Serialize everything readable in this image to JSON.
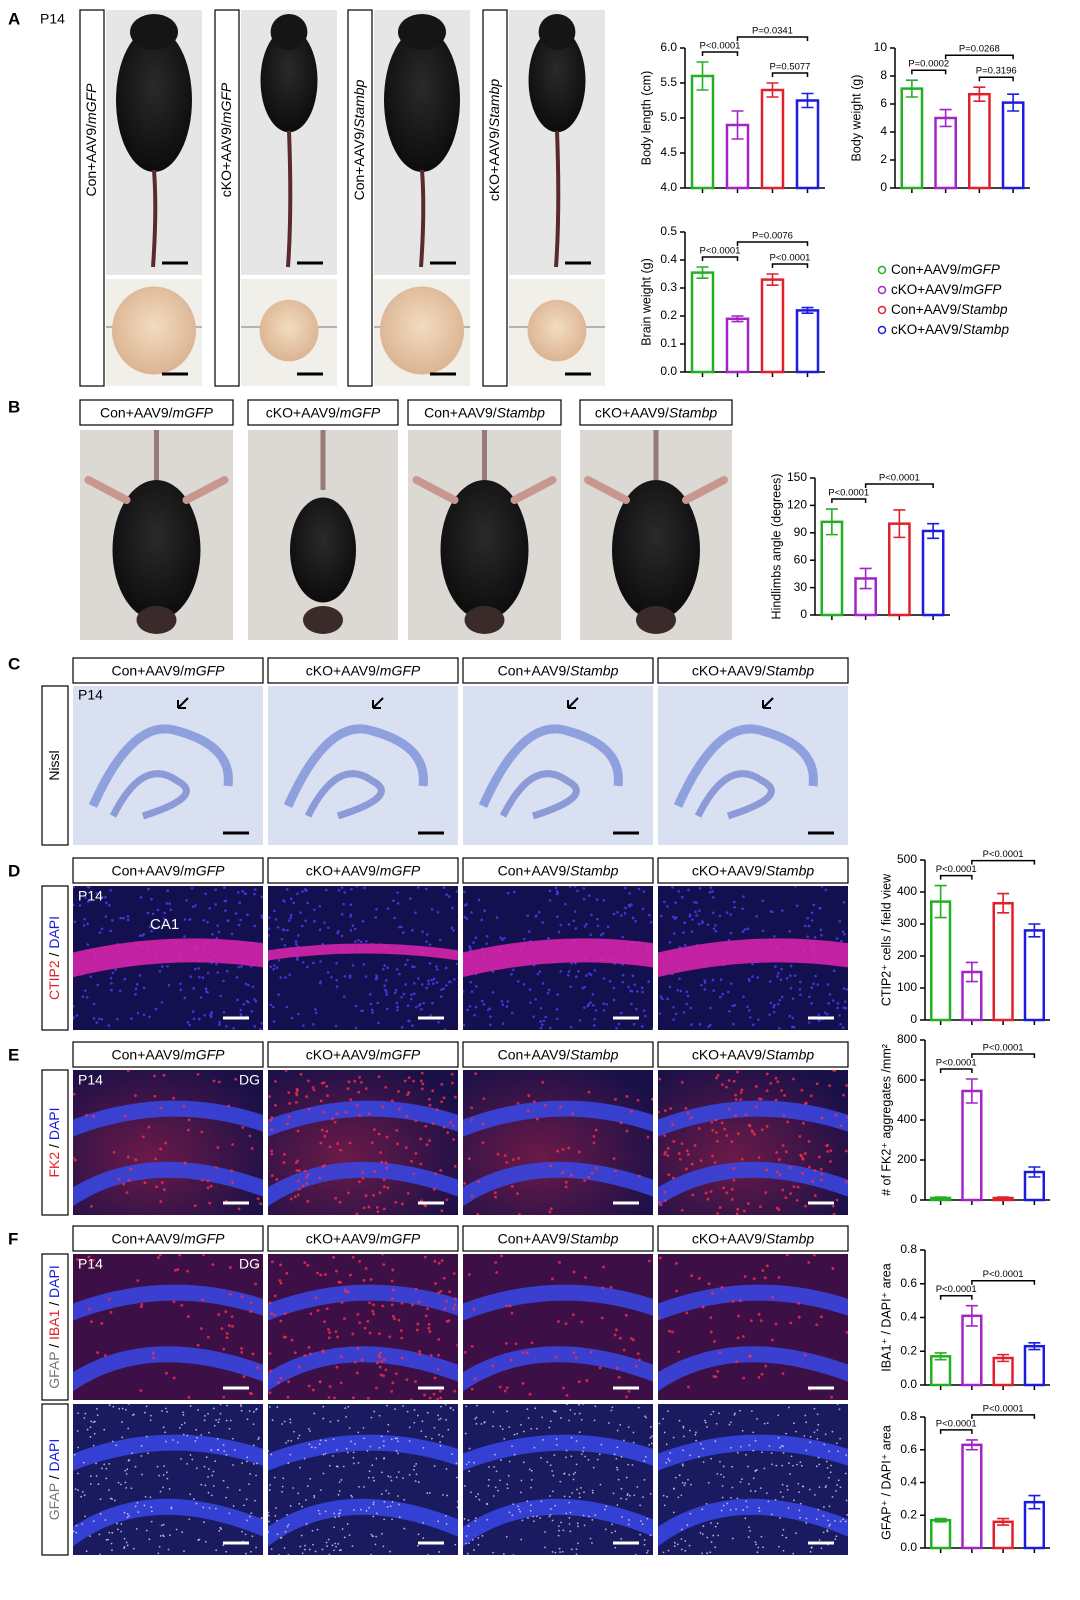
{
  "figure": {
    "panels": [
      "A",
      "B",
      "C",
      "D",
      "E",
      "F"
    ],
    "stage": "P14",
    "groups": [
      {
        "prefix": "Con+AAV9/",
        "gene": "mGFP",
        "color": "#22b022"
      },
      {
        "prefix": "cKO+AAV9/",
        "gene": "mGFP",
        "color": "#a524c8"
      },
      {
        "prefix": "Con+AAV9/",
        "gene": "Stambp",
        "color": "#e0202a"
      },
      {
        "prefix": "cKO+AAV9/",
        "gene": "Stambp",
        "color": "#1c1ce0"
      }
    ],
    "side_labels": {
      "C": [
        {
          "text": "Nissl",
          "color": "#000000"
        }
      ],
      "D": [
        {
          "text": "CTIP2",
          "color": "#e0202a"
        },
        {
          "text": " / ",
          "color": "#000000"
        },
        {
          "text": "DAPI",
          "color": "#1c1ce0"
        }
      ],
      "E": [
        {
          "text": "FK2",
          "color": "#e0202a"
        },
        {
          "text": " / ",
          "color": "#000000"
        },
        {
          "text": "DAPI",
          "color": "#1c1ce0"
        }
      ],
      "F1": [
        {
          "text": "GFAP",
          "color": "#777777"
        },
        {
          "text": " / ",
          "color": "#000000"
        },
        {
          "text": "IBA1",
          "color": "#e0202a"
        },
        {
          "text": " / ",
          "color": "#000000"
        },
        {
          "text": "DAPI",
          "color": "#1c1ce0"
        }
      ],
      "F2": [
        {
          "text": "GFAP",
          "color": "#777777"
        },
        {
          "text": " / ",
          "color": "#000000"
        },
        {
          "text": "DAPI",
          "color": "#1c1ce0"
        }
      ]
    },
    "regions": {
      "D": "CA1",
      "E": "DG",
      "F": "DG"
    }
  },
  "chart_data": [
    {
      "type": "bar",
      "ylabel": "Body length (cm)",
      "categories": [
        null,
        null,
        null,
        null
      ],
      "values": [
        5.6,
        4.9,
        5.4,
        5.25
      ],
      "errors": [
        0.2,
        0.2,
        0.1,
        0.1
      ],
      "ylim": [
        4,
        6
      ],
      "yticks": [
        {
          "value": 4,
          "label": "4.0"
        },
        {
          "value": 4.5,
          "label": "4.5"
        },
        {
          "value": 5,
          "label": "5.0"
        },
        {
          "value": 5.5,
          "label": "5.5"
        },
        {
          "value": 6,
          "label": "6.0"
        }
      ],
      "annotations": [
        {
          "text": "P<0.0001",
          "from": 0,
          "to": 1
        },
        {
          "text": "P=0.5077",
          "from": 2,
          "to": 3
        },
        {
          "text": "P=0.0341",
          "from": 1,
          "to": 3
        }
      ]
    },
    {
      "type": "bar",
      "ylabel": "Body weight (g)",
      "categories": [
        null,
        null,
        null,
        null
      ],
      "values": [
        7.1,
        5.0,
        6.7,
        6.1
      ],
      "errors": [
        0.6,
        0.6,
        0.5,
        0.6
      ],
      "ylim": [
        0,
        10
      ],
      "yticks": [
        0,
        2,
        4,
        6,
        8,
        10
      ],
      "annotations": [
        {
          "text": "P=0.0002",
          "from": 0,
          "to": 1
        },
        {
          "text": "P=0.3196",
          "from": 2,
          "to": 3
        },
        {
          "text": "P=0.0268",
          "from": 1,
          "to": 3
        }
      ]
    },
    {
      "type": "bar",
      "ylabel": "Brain weight (g)",
      "categories": [
        null,
        null,
        null,
        null
      ],
      "values": [
        0.355,
        0.19,
        0.33,
        0.22
      ],
      "errors": [
        0.02,
        0.01,
        0.02,
        0.01
      ],
      "ylim": [
        0,
        0.5
      ],
      "yticks": [
        {
          "value": 0,
          "label": "0.0"
        },
        0.1,
        0.2,
        0.3,
        0.4,
        0.5
      ],
      "annotations": [
        {
          "text": "P<0.0001",
          "from": 0,
          "to": 1
        },
        {
          "text": "P<0.0001",
          "from": 2,
          "to": 3
        },
        {
          "text": "P=0.0076",
          "from": 1,
          "to": 3
        }
      ]
    },
    {
      "type": "bar",
      "ylabel": "Hindlimbs angle (degrees)",
      "categories": [
        null,
        null,
        null,
        null
      ],
      "values": [
        102,
        40,
        100,
        92
      ],
      "errors": [
        14,
        11,
        15,
        8
      ],
      "ylim": [
        0,
        150
      ],
      "yticks": [
        0,
        30,
        60,
        90,
        120,
        150
      ],
      "annotations": [
        {
          "text": "P<0.0001",
          "from": 0,
          "to": 1
        },
        {
          "text": "P<0.0001",
          "from": 1,
          "to": 3
        }
      ]
    },
    {
      "type": "bar",
      "ylabel": "CTIP2⁺ cells / field view",
      "categories": [
        null,
        null,
        null,
        null
      ],
      "values": [
        370,
        150,
        365,
        280
      ],
      "errors": [
        50,
        30,
        30,
        20
      ],
      "ylim": [
        0,
        500
      ],
      "yticks": [
        0,
        100,
        200,
        300,
        400,
        500
      ],
      "annotations": [
        {
          "text": "P<0.0001",
          "from": 0,
          "to": 1
        },
        {
          "text": "P<0.0001",
          "from": 1,
          "to": 3
        }
      ]
    },
    {
      "type": "bar",
      "ylabel": "# of FK2⁺ aggregates /mm²",
      "categories": [
        null,
        null,
        null,
        null
      ],
      "values": [
        10,
        545,
        10,
        140
      ],
      "errors": [
        5,
        60,
        5,
        25
      ],
      "ylim": [
        0,
        800
      ],
      "yticks": [
        0,
        200,
        400,
        600,
        800
      ],
      "annotations": [
        {
          "text": "P<0.0001",
          "from": 0,
          "to": 1
        },
        {
          "text": "P<0.0001",
          "from": 1,
          "to": 3
        }
      ]
    },
    {
      "type": "bar",
      "ylabel": "IBA1⁺ / DAPI⁺ area",
      "categories": [
        null,
        null,
        null,
        null
      ],
      "values": [
        0.17,
        0.41,
        0.16,
        0.23
      ],
      "errors": [
        0.02,
        0.06,
        0.02,
        0.02
      ],
      "ylim": [
        0,
        0.8
      ],
      "yticks": [
        {
          "value": 0,
          "label": "0.0"
        },
        0.2,
        0.4,
        0.6,
        0.8
      ],
      "annotations": [
        {
          "text": "P<0.0001",
          "from": 0,
          "to": 1
        },
        {
          "text": "P<0.0001",
          "from": 1,
          "to": 3
        }
      ]
    },
    {
      "type": "bar",
      "ylabel": "GFAP⁺ / DAPI⁺ area",
      "categories": [
        null,
        null,
        null,
        null
      ],
      "values": [
        0.17,
        0.63,
        0.16,
        0.28
      ],
      "errors": [
        0.01,
        0.03,
        0.02,
        0.04
      ],
      "ylim": [
        0,
        0.8
      ],
      "yticks": [
        {
          "value": 0,
          "label": "0.0"
        },
        0.2,
        0.4,
        0.6,
        0.8
      ],
      "annotations": [
        {
          "text": "P<0.0001",
          "from": 0,
          "to": 1
        },
        {
          "text": "P<0.0001",
          "from": 1,
          "to": 3
        }
      ]
    }
  ]
}
